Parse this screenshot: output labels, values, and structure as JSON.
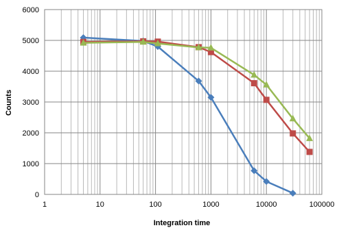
{
  "chart_data": {
    "type": "line",
    "title": "",
    "xlabel": "Integration time",
    "ylabel": "Counts",
    "x_scale": "log",
    "xlim": [
      1,
      100000
    ],
    "ylim": [
      0,
      6000
    ],
    "x_ticks": [
      1,
      10,
      100,
      1000,
      10000,
      100000
    ],
    "x_tick_labels": [
      "1",
      "10",
      "100",
      "1000",
      "10000",
      "100000"
    ],
    "y_ticks": [
      0,
      1000,
      2000,
      3000,
      4000,
      5000,
      6000
    ],
    "y_tick_labels": [
      "0",
      "1000",
      "2000",
      "3000",
      "4000",
      "5000",
      "6000"
    ],
    "grid": "major and minor vertical, major horizontal",
    "legend": "none",
    "series": [
      {
        "color": "#4a7ebb",
        "marker": "diamond",
        "points": [
          {
            "x": 5,
            "y": 5090
          },
          {
            "x": 60,
            "y": 4980
          },
          {
            "x": 110,
            "y": 4800
          },
          {
            "x": 600,
            "y": 3680
          },
          {
            "x": 1000,
            "y": 3150
          },
          {
            "x": 6000,
            "y": 770
          },
          {
            "x": 10000,
            "y": 420
          },
          {
            "x": 30000,
            "y": 40
          }
        ]
      },
      {
        "color": "#be4b48",
        "marker": "square",
        "points": [
          {
            "x": 5,
            "y": 4950
          },
          {
            "x": 60,
            "y": 4970
          },
          {
            "x": 110,
            "y": 4960
          },
          {
            "x": 600,
            "y": 4780
          },
          {
            "x": 1000,
            "y": 4620
          },
          {
            "x": 6000,
            "y": 3610
          },
          {
            "x": 10000,
            "y": 3070
          },
          {
            "x": 30000,
            "y": 1980
          },
          {
            "x": 60000,
            "y": 1380
          }
        ]
      },
      {
        "color": "#98b954",
        "marker": "triangle",
        "points": [
          {
            "x": 5,
            "y": 4920
          },
          {
            "x": 60,
            "y": 4950
          },
          {
            "x": 110,
            "y": 4900
          },
          {
            "x": 600,
            "y": 4770
          },
          {
            "x": 1000,
            "y": 4760
          },
          {
            "x": 6000,
            "y": 3880
          },
          {
            "x": 10000,
            "y": 3560
          },
          {
            "x": 30000,
            "y": 2460
          },
          {
            "x": 60000,
            "y": 1820
          }
        ]
      }
    ]
  }
}
